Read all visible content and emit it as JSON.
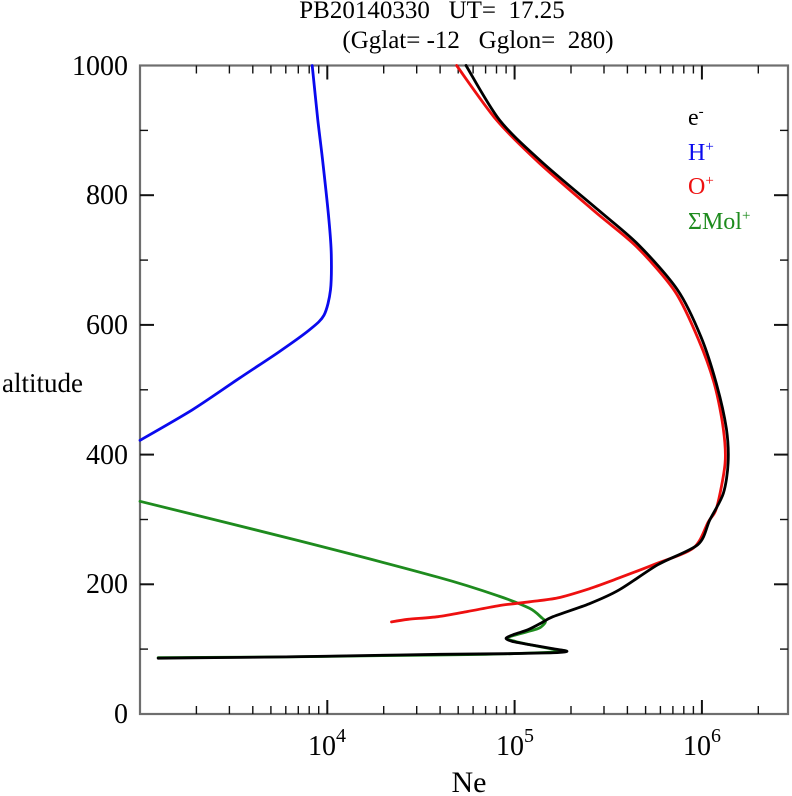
{
  "header": {
    "title": "PB20140330   UT=  17.25",
    "subtitle": "(Gglat= -12   Gglon=  280)"
  },
  "chart_data": {
    "type": "line",
    "title": "PB20140330   UT=  17.25",
    "subtitle": "(Gglat= -12   Gglon=  280)",
    "xlabel": "Ne",
    "ylabel": "altitude",
    "x_scale": "log",
    "y_scale": "linear",
    "xlim": [
      1000,
      2880000
    ],
    "ylim": [
      0,
      1000
    ],
    "grid": false,
    "frame_color": "#6e6e6e",
    "tick_color": "#111111",
    "x_major_ticks": [
      10000,
      100000,
      1000000
    ],
    "x_minor_ticks": [
      2000,
      3000,
      4000,
      5000,
      6000,
      7000,
      8000,
      9000,
      20000,
      30000,
      40000,
      50000,
      60000,
      70000,
      80000,
      90000,
      200000,
      300000,
      400000,
      500000,
      600000,
      700000,
      800000,
      900000,
      2000000
    ],
    "y_major_ticks": [
      200,
      400,
      600,
      800
    ],
    "y_label_ticks": [
      0,
      200,
      400,
      600,
      800,
      1000
    ],
    "y_minor_ticks": [
      100,
      300,
      500,
      700,
      900
    ],
    "legend_position": "inside-top-right",
    "series": [
      {
        "name": "sum-molecular-ions",
        "label_base": "ΣMol",
        "label_sup": "+",
        "color": "#1e8b1e",
        "points": [
          [
            1000,
            328
          ],
          [
            7100,
            267
          ],
          [
            39000,
            211
          ],
          [
            82000,
            182
          ],
          [
            120000,
            163
          ],
          [
            140000,
            148
          ],
          [
            146000,
            142
          ],
          [
            138000,
            134
          ],
          [
            128000,
            130
          ],
          [
            92000,
            118
          ],
          [
            101000,
            112
          ],
          [
            125000,
            106
          ],
          [
            160000,
            100
          ],
          [
            188000,
            97
          ],
          [
            150000,
            95
          ],
          [
            70000,
            92
          ],
          [
            20000,
            90
          ],
          [
            6000,
            88
          ],
          [
            1250,
            87
          ]
        ]
      },
      {
        "name": "hydrogen-ions",
        "label_base": "H",
        "label_sup": "+",
        "color": "#0a0aee",
        "points": [
          [
            1000,
            422
          ],
          [
            1900,
            469
          ],
          [
            3400,
            518
          ],
          [
            5500,
            558
          ],
          [
            8000,
            592
          ],
          [
            9600,
            615
          ],
          [
            10400,
            654
          ],
          [
            10500,
            708
          ],
          [
            10200,
            762
          ],
          [
            9500,
            847
          ],
          [
            8900,
            916
          ],
          [
            8300,
            1000
          ]
        ]
      },
      {
        "name": "oxygen-ions",
        "label_base": "O",
        "label_sup": "+",
        "color": "#ee1010",
        "points": [
          [
            22000,
            142
          ],
          [
            27000,
            146
          ],
          [
            39000,
            150
          ],
          [
            56000,
            158
          ],
          [
            82000,
            167
          ],
          [
            120000,
            173
          ],
          [
            170000,
            179
          ],
          [
            250000,
            193
          ],
          [
            340000,
            207
          ],
          [
            550000,
            230
          ],
          [
            900000,
            256
          ],
          [
            1080000,
            296
          ],
          [
            1200000,
            319
          ],
          [
            1330000,
            387
          ],
          [
            1300000,
            440
          ],
          [
            1170000,
            507
          ],
          [
            960000,
            577
          ],
          [
            720000,
            651
          ],
          [
            450000,
            720
          ],
          [
            270000,
            774
          ],
          [
            135000,
            850
          ],
          [
            80000,
            916
          ],
          [
            49000,
            1000
          ]
        ]
      },
      {
        "name": "electron-density",
        "label_base": "e",
        "label_sup": "-",
        "color": "#000000",
        "points": [
          [
            1250,
            86
          ],
          [
            2500,
            87
          ],
          [
            6000,
            88
          ],
          [
            15000,
            90
          ],
          [
            40000,
            92
          ],
          [
            90000,
            93
          ],
          [
            140000,
            94
          ],
          [
            175000,
            95
          ],
          [
            190000,
            97
          ],
          [
            158000,
            101
          ],
          [
            120000,
            107
          ],
          [
            97000,
            112
          ],
          [
            90000,
            117
          ],
          [
            100000,
            123
          ],
          [
            118000,
            130
          ],
          [
            138000,
            140
          ],
          [
            160000,
            150
          ],
          [
            250000,
            170
          ],
          [
            360000,
            191
          ],
          [
            580000,
            230
          ],
          [
            950000,
            261
          ],
          [
            1100000,
            299
          ],
          [
            1300000,
            340
          ],
          [
            1380000,
            387
          ],
          [
            1350000,
            440
          ],
          [
            1200000,
            507
          ],
          [
            990000,
            581
          ],
          [
            740000,
            654
          ],
          [
            460000,
            723
          ],
          [
            280000,
            777
          ],
          [
            140000,
            851
          ],
          [
            83000,
            916
          ],
          [
            55000,
            1000
          ]
        ]
      }
    ],
    "legend_order": [
      "electron-density",
      "hydrogen-ions",
      "oxygen-ions",
      "sum-molecular-ions"
    ]
  }
}
